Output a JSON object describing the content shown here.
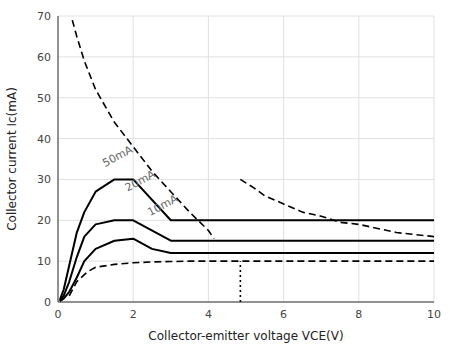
{
  "chart_data": {
    "type": "line",
    "xlabel": "Collector-emitter voltage VCE(V)",
    "ylabel": "Collector current Ic(mA)",
    "xlim": [
      0,
      10
    ],
    "ylim": [
      0,
      70
    ],
    "xticks": [
      0,
      2,
      4,
      6,
      8,
      10
    ],
    "yticks": [
      0,
      10,
      20,
      30,
      40,
      50,
      60,
      70
    ],
    "grid": true,
    "series": [
      {
        "x": [
          0.38,
          0.5,
          0.7,
          1.0,
          1.5,
          2.0,
          2.5,
          3.0,
          3.5,
          4.0,
          4.15
        ],
        "values": [
          69,
          65,
          59,
          52,
          44,
          38,
          32,
          27,
          22,
          17.5,
          15.5
        ],
        "color": "#000000",
        "line_style": "dashed"
      },
      {
        "x": [
          4.85,
          5.2,
          5.5,
          6.0,
          6.5,
          7.0,
          7.5,
          8.0,
          8.5,
          9.0,
          9.5,
          10.0
        ],
        "values": [
          30,
          28,
          26,
          24,
          22,
          21,
          19.5,
          19,
          18,
          17,
          16.5,
          16
        ],
        "color": "#000000",
        "line_style": "dashed"
      },
      {
        "x": [
          4.85,
          4.85
        ],
        "values": [
          0,
          10
        ],
        "color": "#000000",
        "line_style": "dotted"
      },
      {
        "x": [
          0.3,
          0.5,
          0.8,
          1.0,
          1.5,
          2.0,
          2.5,
          3.0,
          3.5,
          4.0,
          4.5,
          5.0,
          6.0,
          7.0,
          8.0,
          9.0,
          10.0
        ],
        "values": [
          1.5,
          5.0,
          7.5,
          8.5,
          9.2,
          9.6,
          9.8,
          9.9,
          10,
          10,
          10,
          10,
          10,
          10,
          10,
          10,
          10
        ],
        "color": "#000000",
        "line_style": "dashed"
      },
      {
        "x": [
          0.05,
          0.15,
          0.3,
          0.5,
          0.7,
          1.0,
          1.5,
          2.0,
          3.0,
          4.0,
          5.0,
          6.0,
          7.0,
          8.0,
          9.0,
          10.0
        ],
        "values": [
          0.5,
          3,
          9,
          17,
          22,
          27,
          30,
          30,
          20,
          20,
          20,
          20,
          20,
          20,
          20,
          20
        ],
        "color": "#000000",
        "line_style": "solid"
      },
      {
        "x": [
          0.05,
          0.15,
          0.3,
          0.5,
          0.7,
          1.0,
          1.5,
          2.0,
          3.0,
          4.0,
          5.0,
          6.0,
          7.0,
          8.0,
          9.0,
          10.0
        ],
        "values": [
          0.3,
          1.5,
          5,
          11,
          16,
          19,
          20,
          20,
          15,
          15,
          15,
          15,
          15,
          15,
          15,
          15
        ],
        "color": "#000000",
        "line_style": "solid"
      },
      {
        "x": [
          0.05,
          0.15,
          0.3,
          0.5,
          0.7,
          1.0,
          1.5,
          2.0,
          2.5,
          3.0,
          4.0,
          5.0,
          6.0,
          7.0,
          8.0,
          9.0,
          10.0
        ],
        "values": [
          0.2,
          0.8,
          2.5,
          6,
          10,
          13,
          15,
          15.5,
          13,
          12,
          12,
          12,
          12,
          12,
          12,
          12,
          12
        ],
        "color": "#000000",
        "line_style": "solid"
      }
    ],
    "annotations": [
      {
        "text": "50mA",
        "x": 1.25,
        "y": 33,
        "color": "#666666"
      },
      {
        "text": "20mA",
        "x": 1.85,
        "y": 27,
        "color": "#666666"
      },
      {
        "text": "10mA",
        "x": 2.45,
        "y": 21,
        "color": "#666666"
      }
    ]
  }
}
